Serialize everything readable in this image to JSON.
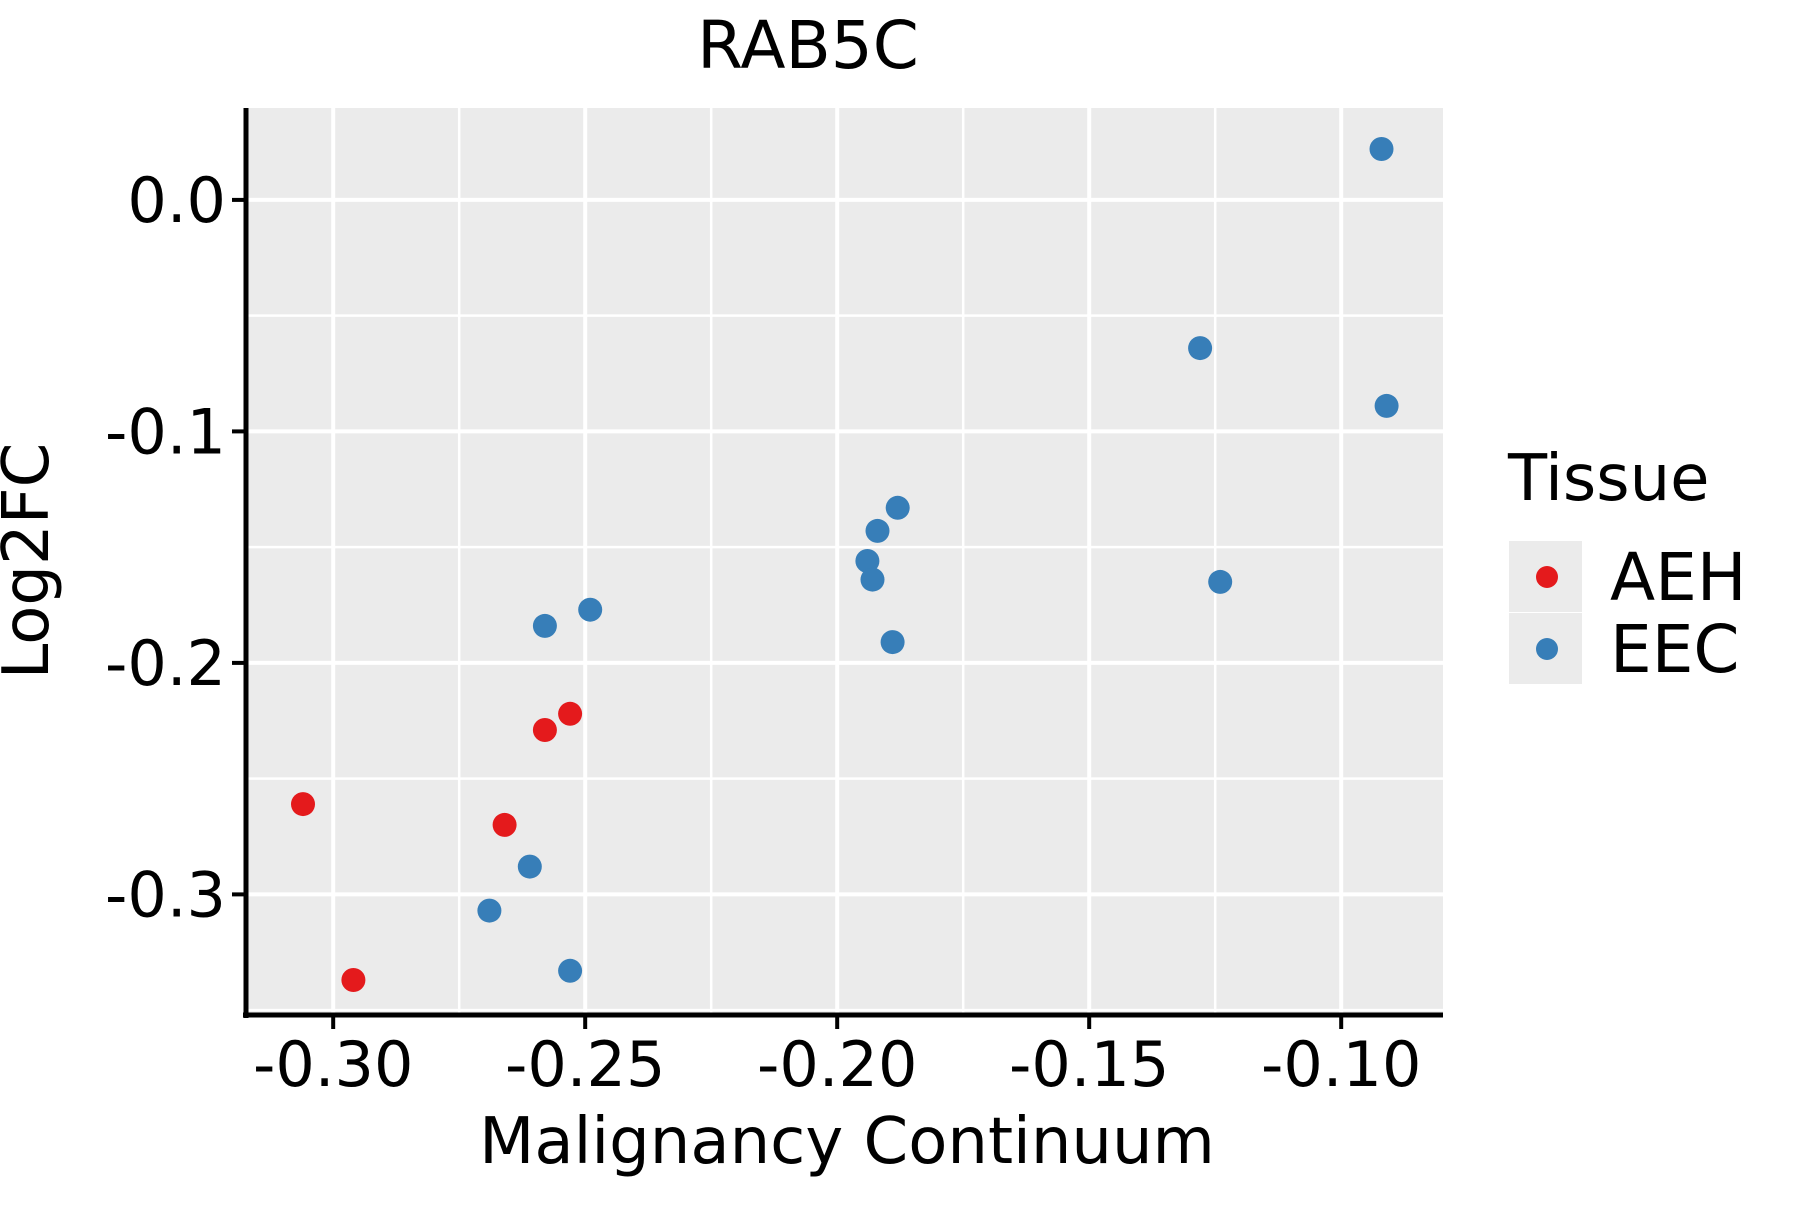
{
  "figure": {
    "background": "#FFFFFF"
  },
  "chart_data": {
    "type": "scatter",
    "title": "RAB5C",
    "xlabel": "Malignancy Continuum",
    "ylabel": "Log2FC",
    "xlim": [
      -0.3173,
      -0.0798
    ],
    "ylim": [
      -0.3521,
      0.0397
    ],
    "x_major_ticks": [
      -0.3,
      -0.25,
      -0.2,
      -0.15,
      -0.1
    ],
    "x_tick_labels": [
      "-0.30",
      "-0.25",
      "-0.20",
      "-0.15",
      "-0.10"
    ],
    "x_minor_ticks": [
      -0.275,
      -0.225,
      -0.175,
      -0.125
    ],
    "y_major_ticks": [
      0.0,
      -0.1,
      -0.2,
      -0.3
    ],
    "y_tick_labels": [
      "0.0",
      "-0.1",
      "-0.2",
      "-0.3"
    ],
    "y_minor_ticks": [
      -0.05,
      -0.15,
      -0.25,
      -0.35
    ],
    "grid": "major and minor white gridlines on gray panel",
    "panel_background": "#EBEBEB",
    "gridline_color": "#FFFFFF",
    "axis_line_color": "#000000",
    "point_radius_px": 12,
    "legend": {
      "title": "Tissue",
      "position": "right",
      "key_background": "#EBEBEB"
    },
    "series": [
      {
        "name": "AEH",
        "color": "#E41A1C",
        "points": [
          [
            -0.306,
            -0.261
          ],
          [
            -0.296,
            -0.337
          ],
          [
            -0.266,
            -0.27
          ],
          [
            -0.258,
            -0.229
          ],
          [
            -0.253,
            -0.222
          ]
        ]
      },
      {
        "name": "EEC",
        "color": "#377EB8",
        "points": [
          [
            -0.269,
            -0.307
          ],
          [
            -0.261,
            -0.288
          ],
          [
            -0.253,
            -0.333
          ],
          [
            -0.258,
            -0.184
          ],
          [
            -0.249,
            -0.177
          ],
          [
            -0.194,
            -0.156
          ],
          [
            -0.193,
            -0.164
          ],
          [
            -0.192,
            -0.143
          ],
          [
            -0.188,
            -0.133
          ],
          [
            -0.189,
            -0.191
          ],
          [
            -0.128,
            -0.064
          ],
          [
            -0.124,
            -0.165
          ],
          [
            -0.092,
            0.022
          ],
          [
            -0.091,
            -0.089
          ]
        ]
      }
    ]
  }
}
